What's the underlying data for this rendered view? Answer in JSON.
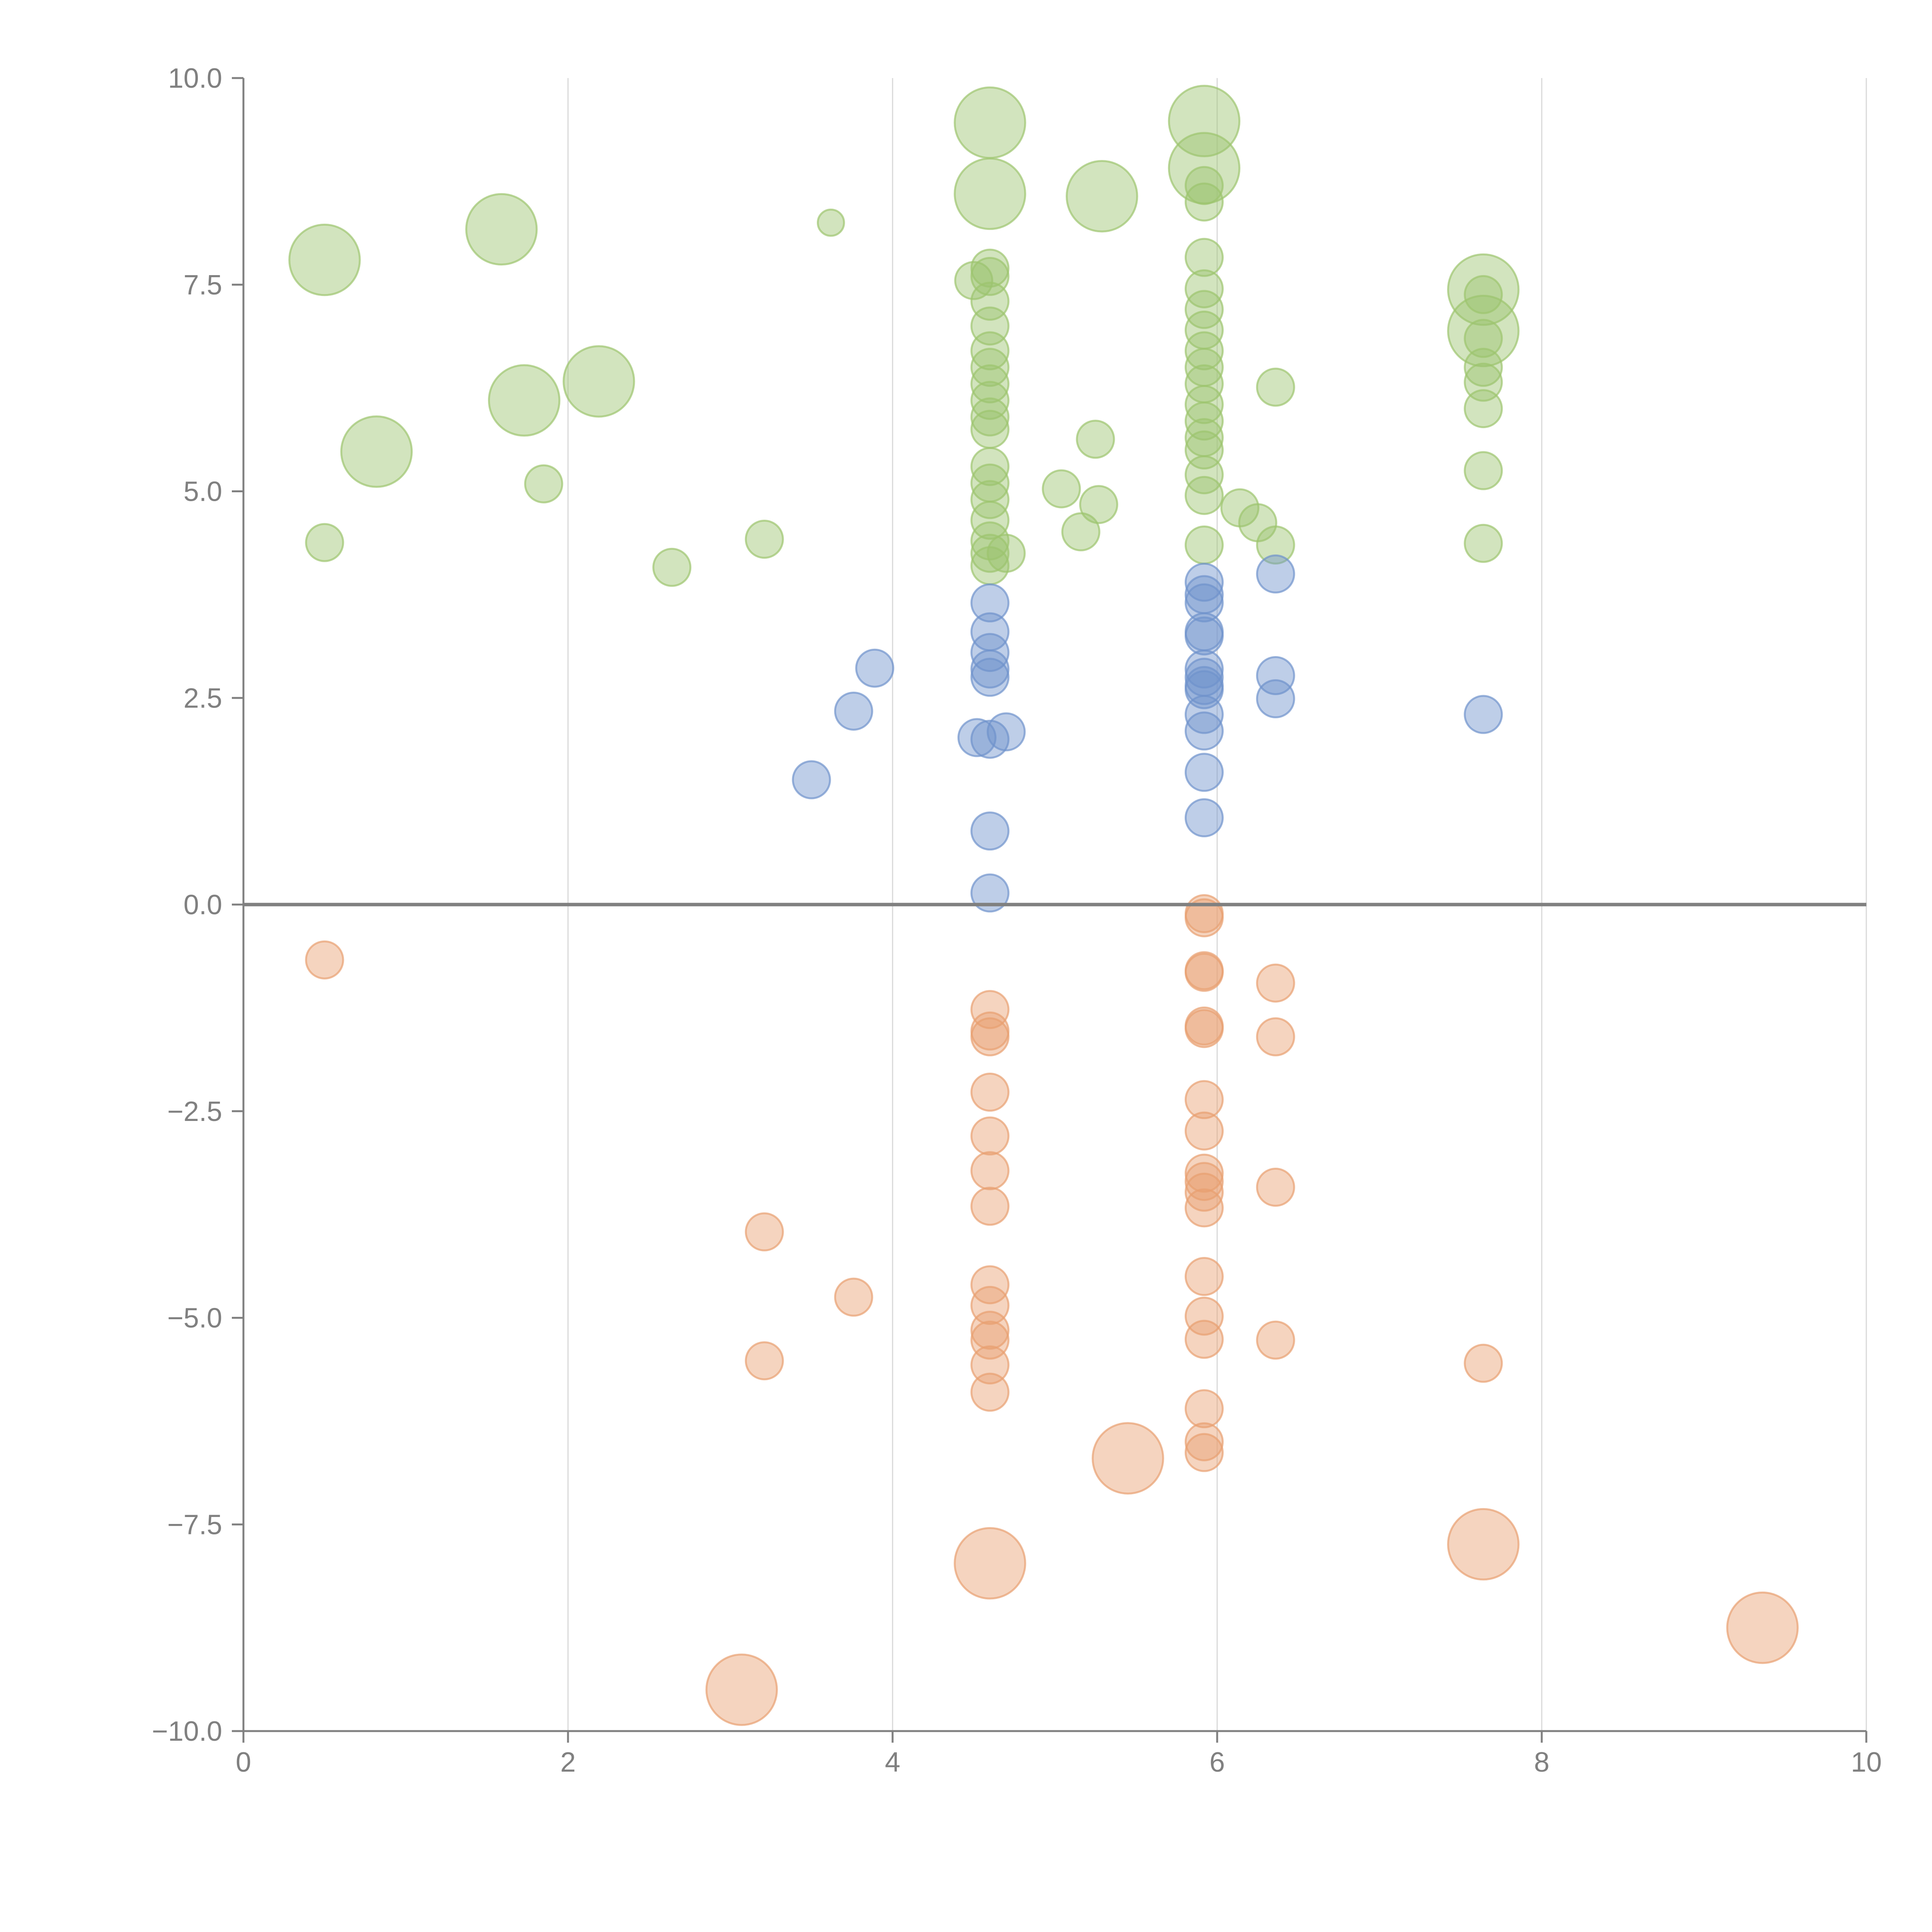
{
  "chart_data": {
    "type": "scatter",
    "title": "",
    "xlabel": "",
    "ylabel": "",
    "xlim": [
      0,
      10
    ],
    "ylim": [
      -10,
      10
    ],
    "x_ticks": [
      "0",
      "2",
      "4",
      "6",
      "8",
      "10"
    ],
    "y_ticks": [
      "10.0",
      "7.5",
      "5.0",
      "2.5",
      "0.0",
      "−2.5",
      "−5.0",
      "−7.5",
      "−10.0"
    ],
    "x_tick_values": [
      0,
      2,
      4,
      6,
      8,
      10
    ],
    "y_tick_values": [
      10,
      7.5,
      5,
      2.5,
      0,
      -2.5,
      -5,
      -7.5,
      -10
    ],
    "grid": {
      "vertical": true,
      "horizontal": false
    },
    "zero_line": true,
    "legend": "none",
    "colors": {
      "green": "#9cc46e",
      "blue": "#6f93cc",
      "orange": "#e8a070"
    },
    "series": [
      {
        "color_key": "green",
        "points": [
          [
            0.5,
            7.8,
            2
          ],
          [
            1.59,
            8.17,
            2
          ],
          [
            0.82,
            5.48,
            2
          ],
          [
            1.73,
            6.1,
            2
          ],
          [
            2.19,
            6.33,
            2
          ],
          [
            3.62,
            8.25,
            0.5
          ],
          [
            4.6,
            9.46,
            2
          ],
          [
            4.6,
            8.6,
            2
          ],
          [
            5.29,
            8.57,
            2
          ],
          [
            5.92,
            9.48,
            2
          ],
          [
            5.92,
            8.91,
            2
          ],
          [
            7.64,
            7.44,
            2
          ],
          [
            7.64,
            6.94,
            2
          ],
          [
            0.5,
            4.38,
            1
          ],
          [
            1.85,
            5.09,
            1
          ],
          [
            2.64,
            4.08,
            1
          ],
          [
            3.21,
            4.42,
            1
          ],
          [
            4.5,
            7.55,
            1
          ],
          [
            4.6,
            7.7,
            1
          ],
          [
            4.6,
            7.6,
            1
          ],
          [
            4.6,
            7.3,
            1
          ],
          [
            4.6,
            7.0,
            1
          ],
          [
            4.6,
            6.7,
            1
          ],
          [
            4.6,
            6.5,
            1
          ],
          [
            4.6,
            6.3,
            1
          ],
          [
            4.6,
            6.1,
            1
          ],
          [
            4.6,
            5.9,
            1
          ],
          [
            4.6,
            5.75,
            1
          ],
          [
            4.6,
            5.3,
            1
          ],
          [
            4.6,
            5.1,
            1
          ],
          [
            4.6,
            4.9,
            1
          ],
          [
            4.6,
            4.65,
            1
          ],
          [
            4.6,
            4.4,
            1
          ],
          [
            4.6,
            4.25,
            1
          ],
          [
            4.6,
            4.1,
            1
          ],
          [
            4.7,
            4.25,
            1
          ],
          [
            5.04,
            5.03,
            1
          ],
          [
            5.16,
            4.51,
            1
          ],
          [
            5.25,
            5.63,
            1
          ],
          [
            5.27,
            4.84,
            1
          ],
          [
            5.92,
            7.83,
            1
          ],
          [
            5.92,
            7.45,
            1
          ],
          [
            5.92,
            7.2,
            1
          ],
          [
            5.92,
            6.95,
            1
          ],
          [
            5.92,
            6.7,
            1
          ],
          [
            5.92,
            6.5,
            1
          ],
          [
            5.92,
            6.3,
            1
          ],
          [
            5.92,
            6.05,
            1
          ],
          [
            5.92,
            5.85,
            1
          ],
          [
            5.92,
            5.65,
            1
          ],
          [
            5.92,
            5.5,
            1
          ],
          [
            5.92,
            5.2,
            1
          ],
          [
            5.92,
            4.95,
            1
          ],
          [
            5.92,
            4.35,
            1
          ],
          [
            5.92,
            8.5,
            1
          ],
          [
            5.92,
            8.7,
            1
          ],
          [
            6.14,
            4.8,
            1
          ],
          [
            6.25,
            4.62,
            1
          ],
          [
            6.36,
            4.35,
            1
          ],
          [
            6.36,
            6.26,
            1
          ],
          [
            7.64,
            7.38,
            1
          ],
          [
            7.64,
            6.85,
            1
          ],
          [
            7.64,
            6.5,
            1
          ],
          [
            7.64,
            6.32,
            1
          ],
          [
            7.64,
            6.0,
            1
          ],
          [
            7.64,
            5.25,
            1
          ],
          [
            7.64,
            4.37,
            1
          ]
        ]
      },
      {
        "color_key": "blue",
        "points": [
          [
            3.5,
            1.51,
            1
          ],
          [
            3.76,
            2.34,
            1
          ],
          [
            3.89,
            2.86,
            1
          ],
          [
            4.52,
            2.02,
            1
          ],
          [
            4.6,
            2.0,
            1
          ],
          [
            4.7,
            2.09,
            1
          ],
          [
            4.6,
            3.65,
            1
          ],
          [
            4.6,
            3.3,
            1
          ],
          [
            4.6,
            3.05,
            1
          ],
          [
            4.6,
            2.85,
            1
          ],
          [
            4.6,
            2.75,
            1
          ],
          [
            4.6,
            0.89,
            1
          ],
          [
            4.6,
            0.14,
            1
          ],
          [
            5.92,
            3.9,
            1
          ],
          [
            5.92,
            3.75,
            1
          ],
          [
            5.92,
            3.65,
            1
          ],
          [
            5.92,
            3.3,
            1
          ],
          [
            5.92,
            3.25,
            1
          ],
          [
            5.92,
            2.85,
            1
          ],
          [
            5.92,
            2.75,
            1
          ],
          [
            5.92,
            2.65,
            1
          ],
          [
            5.92,
            2.6,
            1
          ],
          [
            5.92,
            2.3,
            1
          ],
          [
            5.92,
            2.1,
            1
          ],
          [
            5.92,
            1.6,
            1
          ],
          [
            5.92,
            1.05,
            1
          ],
          [
            6.36,
            4.0,
            1
          ],
          [
            6.36,
            2.77,
            1
          ],
          [
            6.36,
            2.49,
            1
          ],
          [
            7.64,
            2.3,
            1
          ]
        ]
      },
      {
        "color_key": "orange",
        "points": [
          [
            0.5,
            -0.67,
            1
          ],
          [
            3.21,
            -3.96,
            1
          ],
          [
            3.21,
            -5.52,
            1
          ],
          [
            3.76,
            -4.75,
            1
          ],
          [
            4.6,
            -1.27,
            1
          ],
          [
            4.6,
            -1.53,
            1
          ],
          [
            4.6,
            -1.6,
            1
          ],
          [
            4.6,
            -2.27,
            1
          ],
          [
            4.6,
            -2.8,
            1
          ],
          [
            4.6,
            -3.22,
            1
          ],
          [
            4.6,
            -3.65,
            1
          ],
          [
            4.6,
            -4.6,
            1
          ],
          [
            4.6,
            -4.85,
            1
          ],
          [
            4.6,
            -5.15,
            1
          ],
          [
            4.6,
            -5.27,
            1
          ],
          [
            4.6,
            -5.57,
            1
          ],
          [
            4.6,
            -5.9,
            1
          ],
          [
            5.92,
            -0.11,
            1
          ],
          [
            5.92,
            -0.16,
            1
          ],
          [
            5.92,
            -0.8,
            1
          ],
          [
            5.92,
            -0.82,
            1
          ],
          [
            5.92,
            -1.47,
            1
          ],
          [
            5.92,
            -1.5,
            1
          ],
          [
            5.92,
            -2.36,
            1
          ],
          [
            5.92,
            -2.74,
            1
          ],
          [
            5.92,
            -3.25,
            1
          ],
          [
            5.92,
            -3.35,
            1
          ],
          [
            5.92,
            -3.48,
            1
          ],
          [
            5.92,
            -3.67,
            1
          ],
          [
            5.92,
            -4.5,
            1
          ],
          [
            5.92,
            -4.98,
            1
          ],
          [
            5.92,
            -5.26,
            1
          ],
          [
            5.92,
            -6.1,
            1
          ],
          [
            5.92,
            -6.5,
            1
          ],
          [
            5.92,
            -6.63,
            1
          ],
          [
            6.36,
            -0.95,
            1
          ],
          [
            6.36,
            -1.6,
            1
          ],
          [
            6.36,
            -3.42,
            1
          ],
          [
            6.36,
            -5.27,
            1
          ],
          [
            7.64,
            -5.55,
            1
          ],
          [
            3.07,
            -9.5,
            2
          ],
          [
            4.6,
            -7.97,
            2
          ],
          [
            5.45,
            -6.7,
            2
          ],
          [
            7.64,
            -7.74,
            2
          ],
          [
            9.36,
            -8.75,
            2
          ]
        ]
      }
    ]
  }
}
